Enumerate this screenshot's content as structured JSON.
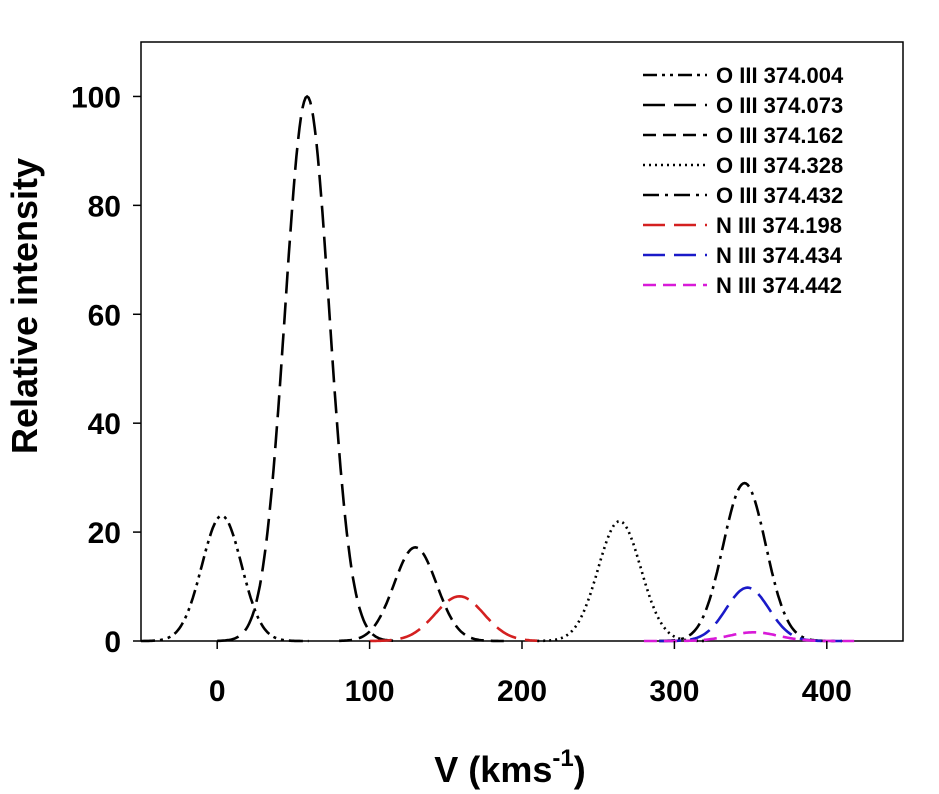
{
  "chart_data": {
    "type": "line",
    "xlabel": "V (kms",
    "xlabel_sup": "-1",
    "xlabel_close": ")",
    "ylabel": "Relative intensity",
    "xlim": [
      -50,
      450
    ],
    "ylim": [
      0,
      110
    ],
    "xticks": [
      0,
      100,
      200,
      300,
      400
    ],
    "yticks": [
      0,
      20,
      40,
      60,
      80,
      100
    ],
    "grid": false,
    "legend_position": "top-right",
    "series": [
      {
        "name": "O III 374.004",
        "center": 3,
        "peak": 23,
        "sigma": 13,
        "x_range": [
          -50,
          60
        ],
        "color": "#000000",
        "dash": "dash-dot-dot"
      },
      {
        "name": "O III 374.073",
        "center": 59,
        "peak": 100,
        "sigma": 14.5,
        "x_range": [
          0,
          120
        ],
        "color": "#000000",
        "dash": "long-dash"
      },
      {
        "name": "O III 374.162",
        "center": 130,
        "peak": 17.2,
        "sigma": 14,
        "x_range": [
          80,
          190
        ],
        "color": "#000000",
        "dash": "dash"
      },
      {
        "name": "O III 374.328",
        "center": 264,
        "peak": 22,
        "sigma": 14,
        "x_range": [
          210,
          320
        ],
        "color": "#000000",
        "dash": "dot"
      },
      {
        "name": "O III 374.432",
        "center": 346,
        "peak": 29,
        "sigma": 14,
        "x_range": [
          290,
          410
        ],
        "color": "#000000",
        "dash": "dash-dot"
      },
      {
        "name": "N III 374.198",
        "center": 159,
        "peak": 8.2,
        "sigma": 16,
        "x_range": [
          100,
          210
        ],
        "color": "#d42020",
        "dash": "long-dash"
      },
      {
        "name": "N III 374.434",
        "center": 348,
        "peak": 9.8,
        "sigma": 14,
        "x_range": [
          290,
          410
        ],
        "color": "#1a1ac8",
        "dash": "long-dash"
      },
      {
        "name": "N III 374.442",
        "center": 352,
        "peak": 1.6,
        "sigma": 16,
        "x_range": [
          280,
          418
        ],
        "color": "#d81ad8",
        "dash": "dash"
      }
    ]
  }
}
